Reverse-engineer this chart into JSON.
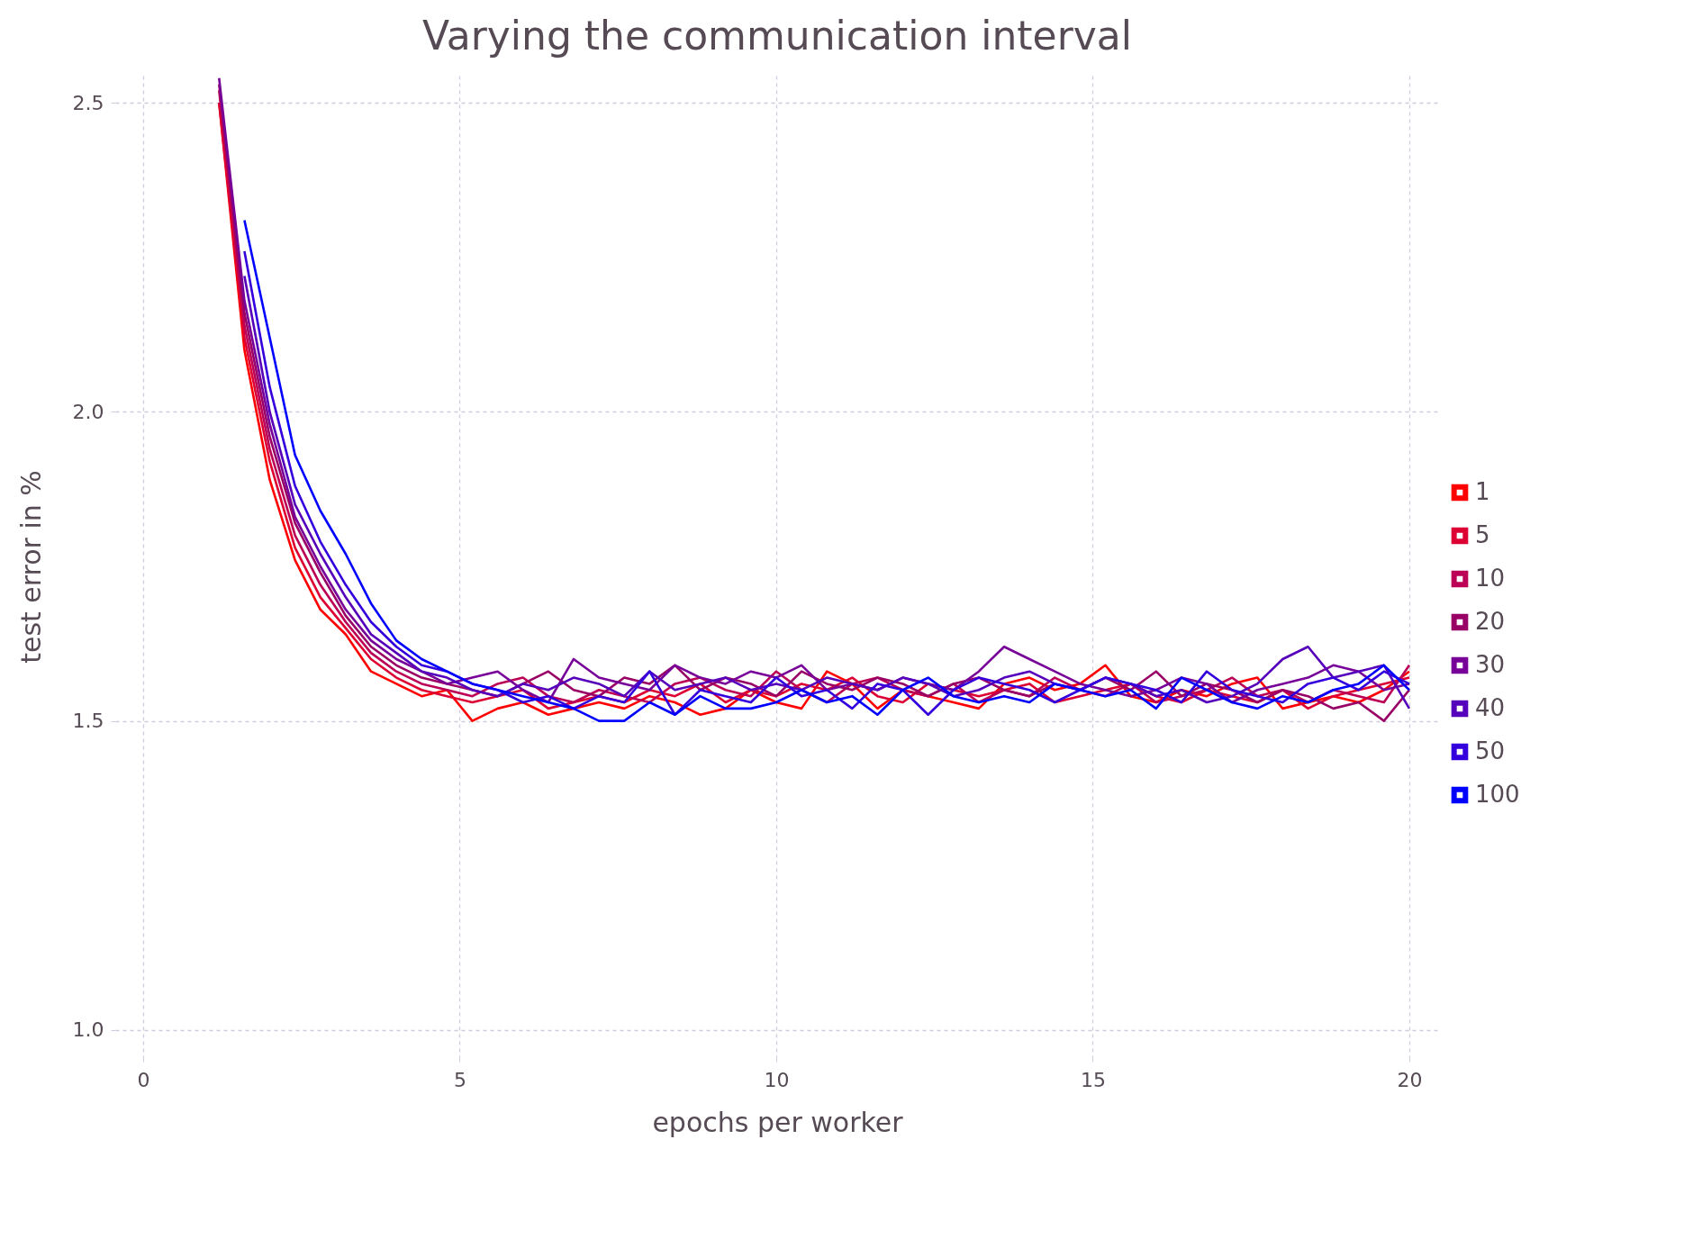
{
  "chart_data": {
    "type": "line",
    "title": "Varying the communication interval",
    "xlabel": "epochs per worker",
    "ylabel": "test error in %",
    "x": [
      1.2,
      1.6,
      2.0,
      2.4,
      2.8,
      3.2,
      3.6,
      4.0,
      4.4,
      4.8,
      5.2,
      5.6,
      6.0,
      6.4,
      6.8,
      7.2,
      7.6,
      8.0,
      8.4,
      8.8,
      9.2,
      9.6,
      10.0,
      10.4,
      10.8,
      11.2,
      11.6,
      12.0,
      12.4,
      12.8,
      13.2,
      13.6,
      14.0,
      14.4,
      14.8,
      15.2,
      15.6,
      16.0,
      16.4,
      16.8,
      17.2,
      17.6,
      18.0,
      18.4,
      18.8,
      19.2,
      19.6,
      20.0
    ],
    "series": [
      {
        "name": "1",
        "color": "#ff0000",
        "values": [
          2.5,
          2.1,
          1.89,
          1.76,
          1.68,
          1.64,
          1.58,
          1.56,
          1.54,
          1.55,
          1.5,
          1.52,
          1.53,
          1.51,
          1.52,
          1.53,
          1.52,
          1.54,
          1.53,
          1.51,
          1.52,
          1.55,
          1.53,
          1.52,
          1.58,
          1.56,
          1.52,
          1.55,
          1.54,
          1.53,
          1.52,
          1.56,
          1.57,
          1.55,
          1.56,
          1.59,
          1.54,
          1.53,
          1.55,
          1.54,
          1.56,
          1.57,
          1.52,
          1.53,
          1.54,
          1.53,
          1.55,
          1.58
        ]
      },
      {
        "name": "5",
        "color": "#dd0033",
        "values": [
          2.5,
          2.12,
          1.92,
          1.78,
          1.7,
          1.65,
          1.6,
          1.57,
          1.55,
          1.54,
          1.53,
          1.54,
          1.55,
          1.52,
          1.53,
          1.54,
          1.53,
          1.55,
          1.54,
          1.56,
          1.53,
          1.55,
          1.54,
          1.56,
          1.55,
          1.57,
          1.54,
          1.53,
          1.56,
          1.55,
          1.54,
          1.55,
          1.56,
          1.53,
          1.54,
          1.55,
          1.56,
          1.54,
          1.53,
          1.55,
          1.54,
          1.53,
          1.55,
          1.52,
          1.54,
          1.55,
          1.56,
          1.57
        ]
      },
      {
        "name": "10",
        "color": "#bb0055",
        "values": [
          2.52,
          2.14,
          1.94,
          1.8,
          1.72,
          1.66,
          1.61,
          1.58,
          1.56,
          1.55,
          1.54,
          1.56,
          1.57,
          1.54,
          1.53,
          1.55,
          1.54,
          1.53,
          1.56,
          1.57,
          1.55,
          1.54,
          1.58,
          1.55,
          1.53,
          1.56,
          1.57,
          1.55,
          1.54,
          1.56,
          1.53,
          1.55,
          1.54,
          1.57,
          1.55,
          1.54,
          1.56,
          1.53,
          1.54,
          1.55,
          1.57,
          1.54,
          1.55,
          1.53,
          1.55,
          1.54,
          1.53,
          1.59
        ]
      },
      {
        "name": "20",
        "color": "#990066",
        "values": [
          2.53,
          2.16,
          1.96,
          1.82,
          1.74,
          1.67,
          1.62,
          1.59,
          1.57,
          1.56,
          1.55,
          1.54,
          1.56,
          1.58,
          1.55,
          1.54,
          1.57,
          1.56,
          1.59,
          1.55,
          1.57,
          1.56,
          1.54,
          1.58,
          1.56,
          1.55,
          1.57,
          1.56,
          1.54,
          1.56,
          1.57,
          1.55,
          1.54,
          1.56,
          1.55,
          1.57,
          1.55,
          1.58,
          1.54,
          1.56,
          1.55,
          1.53,
          1.55,
          1.54,
          1.52,
          1.53,
          1.5,
          1.55
        ]
      },
      {
        "name": "30",
        "color": "#770099",
        "values": [
          2.54,
          2.18,
          1.98,
          1.83,
          1.75,
          1.68,
          1.63,
          1.6,
          1.58,
          1.56,
          1.57,
          1.58,
          1.55,
          1.53,
          1.6,
          1.57,
          1.56,
          1.55,
          1.59,
          1.57,
          1.56,
          1.58,
          1.57,
          1.59,
          1.55,
          1.56,
          1.55,
          1.57,
          1.56,
          1.55,
          1.58,
          1.62,
          1.6,
          1.58,
          1.56,
          1.55,
          1.54,
          1.55,
          1.57,
          1.56,
          1.53,
          1.55,
          1.56,
          1.57,
          1.59,
          1.58,
          1.55,
          1.56
        ]
      },
      {
        "name": "40",
        "color": "#5500bb",
        "values": [
          null,
          2.22,
          2.0,
          1.85,
          1.77,
          1.7,
          1.64,
          1.61,
          1.58,
          1.57,
          1.55,
          1.54,
          1.56,
          1.55,
          1.57,
          1.56,
          1.54,
          1.58,
          1.55,
          1.56,
          1.57,
          1.55,
          1.56,
          1.55,
          1.57,
          1.56,
          1.55,
          1.57,
          1.56,
          1.54,
          1.55,
          1.57,
          1.58,
          1.56,
          1.55,
          1.57,
          1.56,
          1.54,
          1.55,
          1.53,
          1.54,
          1.56,
          1.6,
          1.62,
          1.57,
          1.58,
          1.59,
          1.52
        ]
      },
      {
        "name": "50",
        "color": "#3300dd",
        "values": [
          null,
          2.26,
          2.04,
          1.88,
          1.79,
          1.72,
          1.66,
          1.62,
          1.59,
          1.58,
          1.56,
          1.55,
          1.53,
          1.54,
          1.52,
          1.54,
          1.53,
          1.58,
          1.51,
          1.55,
          1.54,
          1.53,
          1.57,
          1.54,
          1.55,
          1.52,
          1.56,
          1.55,
          1.51,
          1.55,
          1.57,
          1.56,
          1.55,
          1.53,
          1.55,
          1.57,
          1.56,
          1.55,
          1.53,
          1.58,
          1.55,
          1.54,
          1.53,
          1.56,
          1.57,
          1.55,
          1.58,
          1.56
        ]
      },
      {
        "name": "100",
        "color": "#0000ff",
        "values": [
          null,
          2.31,
          2.12,
          1.93,
          1.84,
          1.77,
          1.69,
          1.63,
          1.6,
          1.58,
          1.56,
          1.55,
          1.54,
          1.53,
          1.52,
          1.5,
          1.5,
          1.53,
          1.51,
          1.54,
          1.52,
          1.52,
          1.53,
          1.55,
          1.53,
          1.54,
          1.51,
          1.55,
          1.57,
          1.54,
          1.53,
          1.54,
          1.53,
          1.56,
          1.55,
          1.54,
          1.55,
          1.52,
          1.57,
          1.55,
          1.53,
          1.52,
          1.54,
          1.53,
          1.55,
          1.56,
          1.59,
          1.55
        ]
      }
    ],
    "xlim": [
      -0.44,
      20.47
    ],
    "ylim": [
      0.956,
      2.544
    ],
    "xticks": [
      0,
      5,
      10,
      15,
      20
    ],
    "yticks": [
      {
        "value": 1.0,
        "label": "1.0"
      },
      {
        "value": 1.5,
        "label": "1.5"
      },
      {
        "value": 2.0,
        "label": "2.0"
      },
      {
        "value": 2.5,
        "label": "2.5"
      }
    ],
    "grid": true,
    "legend": "right",
    "line_style": "solid",
    "marker": "none"
  }
}
